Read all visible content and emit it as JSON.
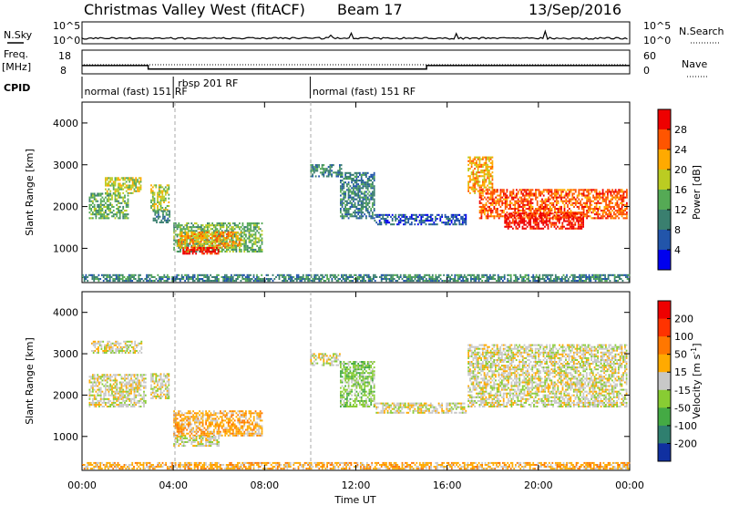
{
  "header": {
    "title": "Christmas Valley West (fitACF)",
    "beam": "Beam 17",
    "date": "13/Sep/2016"
  },
  "strip": {
    "nsky_label": "N.Sky",
    "nsearch_label": "N.Search",
    "freq_label_1": "Freq.",
    "freq_label_2": "[MHz]",
    "nave_label": "Nave",
    "cpid_label": "CPID",
    "noise_left_ticks": [
      "10^5",
      "10^0"
    ],
    "noise_right_ticks": [
      "10^5",
      "10^0"
    ],
    "freq_left_ticks": [
      "18",
      "8"
    ],
    "freq_right_ticks": [
      "60",
      "0"
    ],
    "cpid_labels": [
      {
        "text": "normal (fast) 151 RF",
        "hour": 0.1
      },
      {
        "text": "rbsp 201 RF",
        "hour": 4.2
      },
      {
        "text": "normal (fast) 151 RF",
        "hour": 10.1
      }
    ]
  },
  "panels": {
    "ylabel": "Slant Range [km]",
    "xlabel": "Time UT",
    "yticks": [
      "4000",
      "3000",
      "2000",
      "1000"
    ],
    "xticks": [
      "00:00",
      "04:00",
      "08:00",
      "12:00",
      "16:00",
      "20:00",
      "00:00"
    ]
  },
  "colorbars": {
    "power": {
      "label": "Power [dB]",
      "ticks": [
        "28",
        "24",
        "20",
        "16",
        "12",
        "8",
        "4"
      ],
      "colors": [
        "#0000ee",
        "#2255aa",
        "#3a7f6f",
        "#55aa55",
        "#bbcc22",
        "#ffaa00",
        "#ff5500",
        "#ee0000"
      ]
    },
    "velocity": {
      "label": "Velocity [m s",
      "label_sup": "-1",
      "label_end": "]",
      "ticks": [
        "200",
        "100",
        "50",
        "15",
        "-15",
        "-50",
        "-100",
        "-200"
      ],
      "colors": [
        "#1030a0",
        "#2f7f6f",
        "#44aa44",
        "#88cc33",
        "#c8c8c8",
        "#ffaa00",
        "#ff7700",
        "#ff3300",
        "#ee0000"
      ]
    }
  },
  "chart_data": {
    "type": "heatmap",
    "x_range_hours": [
      0,
      24
    ],
    "y_range_km": [
      180,
      4500
    ],
    "frequency_mhz_segments": [
      {
        "start": 0,
        "end": 2.9,
        "value": 11.5
      },
      {
        "start": 2.9,
        "end": 15.1,
        "value": 10.0
      },
      {
        "start": 15.1,
        "end": 24,
        "value": 11.5
      }
    ],
    "power_regions": [
      {
        "t0": 0.3,
        "t1": 2.0,
        "r0": 1700,
        "r1": 2300,
        "level": 3
      },
      {
        "t0": 1.0,
        "t1": 2.6,
        "r0": 2300,
        "r1": 2700,
        "level": 4
      },
      {
        "t0": 3.0,
        "t1": 3.8,
        "r0": 1900,
        "r1": 2500,
        "level": 4
      },
      {
        "t0": 3.1,
        "t1": 3.8,
        "r0": 1600,
        "r1": 1900,
        "level": 2
      },
      {
        "t0": 4.0,
        "t1": 7.9,
        "r0": 900,
        "r1": 1600,
        "level": 3
      },
      {
        "t0": 4.2,
        "t1": 7.0,
        "r0": 1000,
        "r1": 1400,
        "level": 5
      },
      {
        "t0": 4.4,
        "t1": 6.0,
        "r0": 850,
        "r1": 1000,
        "level": 7
      },
      {
        "t0": 10.0,
        "t1": 11.4,
        "r0": 2700,
        "r1": 3000,
        "level": 2
      },
      {
        "t0": 11.3,
        "t1": 12.8,
        "r0": 1700,
        "r1": 2800,
        "level": 2
      },
      {
        "t0": 12.8,
        "t1": 16.8,
        "r0": 1550,
        "r1": 1800,
        "level": 1
      },
      {
        "t0": 16.9,
        "t1": 18.0,
        "r0": 2300,
        "r1": 3200,
        "level": 5
      },
      {
        "t0": 17.4,
        "t1": 23.9,
        "r0": 1700,
        "r1": 2400,
        "level": 6
      },
      {
        "t0": 18.5,
        "t1": 22.0,
        "r0": 1450,
        "r1": 1850,
        "level": 7
      },
      {
        "t0": 0.0,
        "t1": 24.0,
        "r0": 200,
        "r1": 350,
        "level": 2
      }
    ],
    "velocity_regions": [
      {
        "t0": 0.3,
        "t1": 2.8,
        "r0": 1700,
        "r1": 2500,
        "level": 4
      },
      {
        "t0": 0.4,
        "t1": 2.6,
        "r0": 3000,
        "r1": 3300,
        "level": 4
      },
      {
        "t0": 3.0,
        "t1": 3.8,
        "r0": 1900,
        "r1": 2500,
        "level": 4
      },
      {
        "t0": 4.0,
        "t1": 7.9,
        "r0": 1000,
        "r1": 1600,
        "level": 5
      },
      {
        "t0": 4.0,
        "t1": 6.0,
        "r0": 750,
        "r1": 1000,
        "level": 4
      },
      {
        "t0": 10.0,
        "t1": 11.3,
        "r0": 2700,
        "r1": 3000,
        "level": 4
      },
      {
        "t0": 11.3,
        "t1": 12.8,
        "r0": 1700,
        "r1": 2800,
        "level": 3
      },
      {
        "t0": 12.8,
        "t1": 16.8,
        "r0": 1550,
        "r1": 1800,
        "level": 4
      },
      {
        "t0": 16.9,
        "t1": 23.9,
        "r0": 1700,
        "r1": 3200,
        "level": 4
      },
      {
        "t0": 0.0,
        "t1": 24.0,
        "r0": 200,
        "r1": 350,
        "level": 5
      }
    ]
  }
}
